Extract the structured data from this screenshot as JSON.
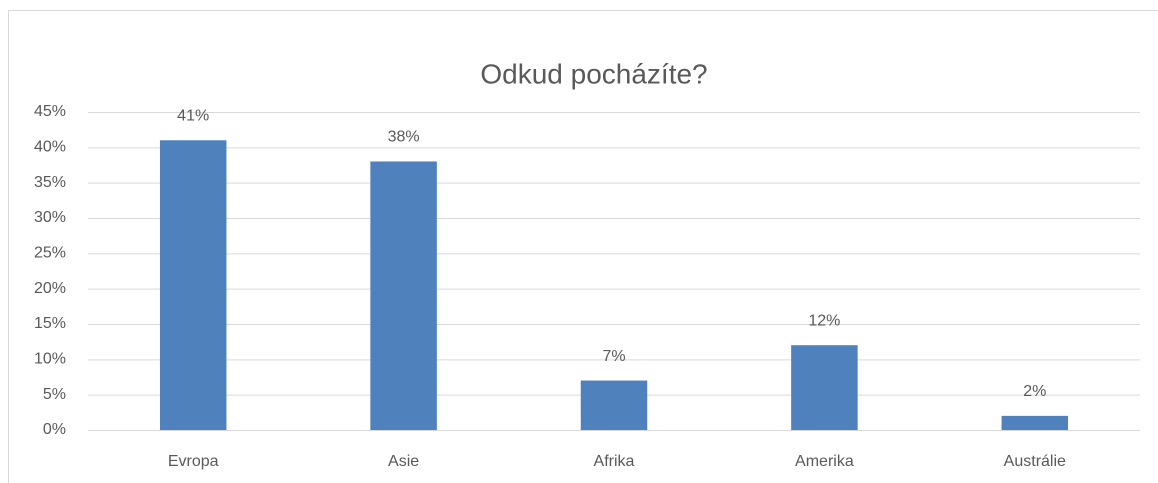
{
  "chart_data": {
    "type": "bar",
    "title": "Odkud pocházíte?",
    "categories": [
      "Evropa",
      "Asie",
      "Afrika",
      "Amerika",
      "Austrálie"
    ],
    "values": [
      41,
      38,
      7,
      12,
      2
    ],
    "value_labels": [
      "41%",
      "38%",
      "7%",
      "12%",
      "2%"
    ],
    "color": "#4f81bd",
    "ylim": [
      0,
      45
    ],
    "yticks": [
      {
        "value": 0,
        "label": "0%"
      },
      {
        "value": 5,
        "label": "5%"
      },
      {
        "value": 10,
        "label": "10%"
      },
      {
        "value": 15,
        "label": "15%"
      },
      {
        "value": 20,
        "label": "20%"
      },
      {
        "value": 25,
        "label": "25%"
      },
      {
        "value": 30,
        "label": "30%"
      },
      {
        "value": 35,
        "label": "35%"
      },
      {
        "value": 40,
        "label": "40%"
      },
      {
        "value": 45,
        "label": "45%"
      }
    ],
    "grid": true
  }
}
